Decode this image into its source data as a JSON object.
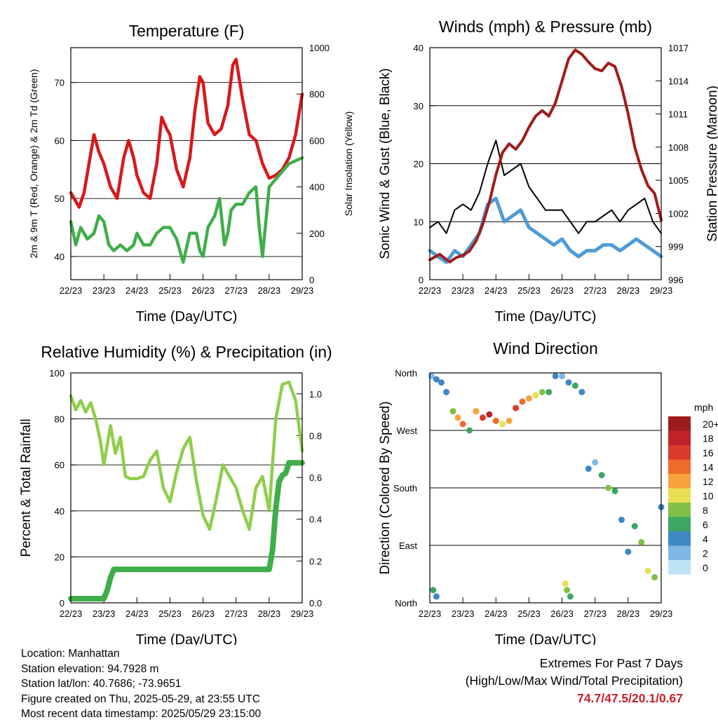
{
  "chart_data": [
    {
      "type": "line",
      "title": "Temperature (F)",
      "xlabel": "Time (Day/UTC)",
      "ylabel": "2m & 9m T (Red, Orange) & 2m Td (Green)",
      "ylabel_right": "Solar Insolation (Yellow)",
      "x_ticks": [
        "22/23",
        "23/23",
        "24/23",
        "25/23",
        "26/23",
        "27/23",
        "28/23",
        "29/23"
      ],
      "ylim": [
        36,
        76
      ],
      "y_ticks": [
        40,
        50,
        60,
        70
      ],
      "ylim_right": [
        0,
        1000
      ],
      "y_ticks_right": [
        0,
        200,
        400,
        600,
        800,
        1000
      ],
      "grid": true,
      "series": [
        {
          "name": "2m T",
          "color": "#d7191c",
          "axis": "left",
          "x": [
            0,
            0.1,
            0.25,
            0.4,
            0.55,
            0.7,
            0.85,
            1.0,
            1.2,
            1.4,
            1.6,
            1.75,
            1.9,
            2.0,
            2.2,
            2.4,
            2.6,
            2.75,
            2.9,
            3.0,
            3.2,
            3.4,
            3.6,
            3.75,
            3.9,
            4.0,
            4.15,
            4.35,
            4.55,
            4.75,
            4.9,
            5.0,
            5.2,
            5.4,
            5.6,
            5.8,
            6.0,
            6.2,
            6.4,
            6.6,
            6.8,
            7.0
          ],
          "values": [
            51,
            50,
            48.5,
            51,
            56,
            61,
            58,
            56,
            52,
            50,
            57,
            60,
            57,
            54,
            51,
            50,
            56,
            64,
            62,
            61,
            55,
            52,
            57,
            65,
            71,
            70,
            63,
            61,
            62,
            66,
            73,
            74,
            67,
            61,
            60,
            56,
            53.5,
            54,
            55,
            57,
            61,
            68
          ]
        },
        {
          "name": "2m Td",
          "color": "#3fae49",
          "axis": "left",
          "x": [
            0,
            0.15,
            0.3,
            0.5,
            0.7,
            0.85,
            1.0,
            1.15,
            1.3,
            1.5,
            1.7,
            1.9,
            2.0,
            2.2,
            2.4,
            2.6,
            2.8,
            3.0,
            3.2,
            3.4,
            3.6,
            3.8,
            3.9,
            4.0,
            4.15,
            4.35,
            4.5,
            4.65,
            4.75,
            4.85,
            5.0,
            5.2,
            5.4,
            5.6,
            5.7,
            5.8,
            6.0,
            6.3,
            6.6,
            7.0
          ],
          "values": [
            46,
            42,
            45,
            43,
            44,
            47,
            46,
            42,
            41,
            42,
            41,
            42,
            44,
            42,
            42,
            44,
            45,
            45,
            43,
            39,
            44,
            44,
            41,
            40,
            45,
            47,
            50,
            42,
            44,
            48,
            49,
            49,
            51,
            52,
            45,
            40,
            52,
            54,
            56,
            57
          ]
        }
      ]
    },
    {
      "type": "line",
      "title": "Winds (mph) & Pressure (mb)",
      "xlabel": "Time (Day/UTC)",
      "ylabel": "Sonic Wind & Gust (Blue, Black)",
      "ylabel_right": "Station Pressure (Maroon)",
      "x_ticks": [
        "22/23",
        "23/23",
        "24/23",
        "25/23",
        "26/23",
        "27/23",
        "28/23",
        "29/23"
      ],
      "ylim": [
        0,
        40
      ],
      "y_ticks": [
        0,
        10,
        20,
        30,
        40
      ],
      "ylim_right": [
        996,
        1017
      ],
      "y_ticks_right": [
        996,
        999,
        1002,
        1005,
        1008,
        1011,
        1014,
        1017
      ],
      "grid": true,
      "series": [
        {
          "name": "Sonic Wind",
          "color": "#4f9bd6",
          "axis": "left",
          "x": [
            0,
            0.25,
            0.5,
            0.75,
            1.0,
            1.25,
            1.5,
            1.75,
            2.0,
            2.25,
            2.5,
            2.75,
            3.0,
            3.25,
            3.5,
            3.75,
            4.0,
            4.25,
            4.5,
            4.75,
            5.0,
            5.25,
            5.5,
            5.75,
            6.0,
            6.25,
            6.5,
            6.75,
            7.0
          ],
          "values": [
            5,
            4,
            3,
            5,
            4,
            6,
            8,
            13,
            14,
            10,
            11,
            12,
            9,
            8,
            7,
            6,
            7,
            5,
            4,
            5,
            5,
            6,
            6,
            5,
            6,
            7,
            6,
            5,
            4
          ]
        },
        {
          "name": "Gust",
          "color": "#000000",
          "axis": "left",
          "x": [
            0,
            0.25,
            0.5,
            0.75,
            1.0,
            1.25,
            1.5,
            1.75,
            2.0,
            2.25,
            2.5,
            2.75,
            3.0,
            3.25,
            3.5,
            3.75,
            4.0,
            4.25,
            4.5,
            4.75,
            5.0,
            5.25,
            5.5,
            5.75,
            6.0,
            6.25,
            6.5,
            6.75,
            7.0
          ],
          "values": [
            9,
            10,
            8,
            12,
            13,
            12,
            15,
            20,
            24,
            18,
            19,
            20,
            16,
            14,
            12,
            12,
            12,
            10,
            8,
            10,
            10,
            11,
            12,
            10,
            12,
            13,
            14,
            10,
            8
          ]
        },
        {
          "name": "Station Pressure",
          "color": "#a01c1c",
          "axis": "right",
          "x": [
            0,
            0.3,
            0.6,
            0.8,
            1.0,
            1.2,
            1.4,
            1.6,
            1.8,
            2.0,
            2.2,
            2.4,
            2.6,
            2.8,
            3.0,
            3.2,
            3.4,
            3.6,
            3.8,
            4.0,
            4.2,
            4.4,
            4.6,
            4.8,
            5.0,
            5.2,
            5.4,
            5.6,
            5.8,
            6.0,
            6.2,
            6.4,
            6.6,
            6.8,
            7.0
          ],
          "values": [
            997.8,
            998.3,
            997.6,
            998.0,
            998.2,
            998.6,
            999.5,
            1001.0,
            1003.0,
            1005.5,
            1007.5,
            1008.3,
            1007.8,
            1008.6,
            1009.8,
            1010.8,
            1011.3,
            1010.8,
            1012.0,
            1014.0,
            1016.0,
            1016.8,
            1016.4,
            1015.7,
            1015.1,
            1014.9,
            1015.6,
            1015.3,
            1013.5,
            1011.0,
            1008.0,
            1006.0,
            1004.5,
            1003.8,
            1001.4
          ]
        }
      ]
    },
    {
      "type": "line",
      "title": "Relative Humidity (%) & Precipitation (in)",
      "xlabel": "Time (Day/UTC)",
      "ylabel": "Percent & Total Rainfall",
      "x_ticks": [
        "22/23",
        "23/23",
        "24/23",
        "25/23",
        "26/23",
        "27/23",
        "28/23",
        "29/23"
      ],
      "ylim": [
        0,
        100
      ],
      "y_ticks": [
        0,
        20,
        40,
        60,
        80,
        100
      ],
      "ylim_right": [
        0,
        1.1
      ],
      "y_ticks_right": [
        "0.0",
        "0.2",
        "0.4",
        "0.6",
        "0.8",
        "1.0"
      ],
      "grid": true,
      "series": [
        {
          "name": "Relative Humidity",
          "color": "#8fce4c",
          "axis": "left",
          "x": [
            0,
            0.15,
            0.3,
            0.45,
            0.6,
            0.75,
            0.9,
            1.0,
            1.2,
            1.35,
            1.5,
            1.65,
            1.8,
            2.0,
            2.2,
            2.4,
            2.6,
            2.8,
            3.0,
            3.2,
            3.4,
            3.6,
            3.8,
            4.0,
            4.2,
            4.4,
            4.6,
            4.8,
            5.0,
            5.2,
            5.4,
            5.6,
            5.8,
            6.0,
            6.2,
            6.4,
            6.6,
            6.8,
            7.0
          ],
          "values": [
            90,
            84,
            88,
            83,
            87,
            80,
            70,
            60,
            77,
            65,
            72,
            55,
            54,
            54,
            55,
            62,
            66,
            50,
            44,
            57,
            67,
            72,
            53,
            38,
            32,
            45,
            60,
            55,
            50,
            40,
            32,
            50,
            55,
            40,
            80,
            95,
            96,
            88,
            66
          ]
        },
        {
          "name": "Total Rainfall",
          "color": "#3fae49",
          "axis": "right",
          "x": [
            0,
            0.5,
            1.0,
            1.1,
            1.2,
            1.3,
            1.5,
            2.0,
            3.0,
            4.0,
            5.0,
            5.5,
            6.0,
            6.1,
            6.2,
            6.3,
            6.4,
            6.5,
            6.6,
            7.0
          ],
          "values": [
            0.02,
            0.02,
            0.02,
            0.06,
            0.12,
            0.16,
            0.16,
            0.16,
            0.16,
            0.16,
            0.16,
            0.16,
            0.16,
            0.25,
            0.45,
            0.58,
            0.61,
            0.62,
            0.67,
            0.67
          ]
        }
      ]
    },
    {
      "type": "scatter",
      "title": "Wind Direction",
      "xlabel": "Time (Day/UTC)",
      "ylabel": "Direction (Colored By Speed)",
      "x_ticks": [
        "22/23",
        "23/23",
        "24/23",
        "25/23",
        "26/23",
        "27/23",
        "28/23",
        "29/23"
      ],
      "y_ticks": [
        "North",
        "East",
        "South",
        "West",
        "North"
      ],
      "ylim": [
        0,
        360
      ],
      "grid": true,
      "legend": {
        "title": "mph",
        "placement": "right",
        "labels": [
          "20+",
          "18",
          "16",
          "14",
          "12",
          "10",
          "8",
          "6",
          "4",
          "2",
          "0"
        ],
        "colors": [
          "#9e1b1e",
          "#c0222a",
          "#dc3a2a",
          "#f06a2c",
          "#f6a33c",
          "#e8df52",
          "#80c145",
          "#3ea562",
          "#3f87c5",
          "#7fb7e3",
          "#bfe3f7"
        ]
      },
      "x": [
        0.05,
        0.2,
        0.35,
        0.5,
        0.7,
        0.85,
        1.0,
        1.2,
        1.4,
        1.6,
        1.8,
        2.0,
        2.2,
        2.4,
        2.6,
        2.8,
        3.0,
        3.2,
        3.4,
        3.6,
        3.8,
        4.0,
        4.2,
        4.4,
        4.6,
        4.8,
        5.0,
        5.2,
        5.4,
        5.6,
        5.8,
        6.0,
        6.2,
        6.4,
        6.6,
        6.8,
        7.0,
        0.1,
        0.2,
        4.1,
        4.15,
        4.25
      ],
      "y": [
        355,
        350,
        345,
        330,
        300,
        290,
        280,
        270,
        300,
        290,
        295,
        285,
        280,
        285,
        305,
        315,
        320,
        325,
        330,
        330,
        355,
        355,
        345,
        340,
        330,
        210,
        220,
        200,
        180,
        175,
        130,
        80,
        120,
        95,
        50,
        40,
        150,
        20,
        10,
        30,
        20,
        10
      ],
      "speed": [
        2,
        3,
        4,
        4,
        8,
        12,
        14,
        6,
        12,
        16,
        18,
        14,
        10,
        12,
        16,
        14,
        12,
        10,
        8,
        6,
        4,
        2,
        4,
        6,
        4,
        4,
        2,
        6,
        8,
        6,
        4,
        4,
        6,
        8,
        10,
        8,
        4,
        6,
        4,
        10,
        8,
        6
      ]
    }
  ],
  "info": {
    "location": "Location: Manhattan",
    "elevation": "Station elevation: 94.7928 m",
    "latlon": "Station lat/lon: 40.7686; -73.9651",
    "created": "Figure created on Thu, 2025-05-29, at 23:55 UTC",
    "timestamp": "Most recent data timestamp: 2025/05/29 23:15:00"
  },
  "extremes": {
    "title": "Extremes For Past 7 Days",
    "subtitle": "(High/Low/Max Wind/Total Precipitation)",
    "values": "74.7/47.5/20.1/0.67"
  }
}
